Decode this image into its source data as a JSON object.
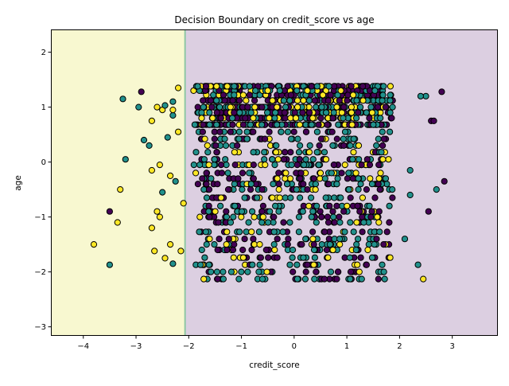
{
  "chart_data": {
    "type": "scatter",
    "title": "Decision Boundary on credit_score vs age",
    "xlabel": "credit_score",
    "ylabel": "age",
    "xlim": [
      -4.6,
      3.85
    ],
    "ylim": [
      -3.15,
      2.4
    ],
    "xticks": [
      -4,
      -3,
      -2,
      -1,
      0,
      1,
      2,
      3
    ],
    "yticks": [
      -3,
      -2,
      -1,
      0,
      1,
      2
    ],
    "grid": false,
    "legend": "none",
    "regions": [
      {
        "class": 2,
        "x_from": -4.6,
        "x_to": -2.07,
        "color": "#f8f8d0"
      },
      {
        "class": 0,
        "x_from": -2.07,
        "x_to": 3.85,
        "color": "#dccfe1"
      }
    ],
    "boundary_x": -2.07,
    "boundary_color": "#8fc7a4",
    "class_colors": {
      "0": "#440154",
      "1": "#21918c",
      "2": "#fde725"
    },
    "marker_edge": "#000000",
    "point_summary": {
      "x_range": [
        -3.8,
        2.85
      ],
      "y_levels": [
        -2.13,
        -2.0,
        -1.87,
        -1.74,
        -1.6,
        -1.5,
        -1.4,
        -1.27,
        -1.1,
        -1.0,
        -0.9,
        -0.8,
        -0.65,
        -0.5,
        -0.4,
        -0.3,
        -0.2,
        -0.05,
        0.05,
        0.18,
        0.3,
        0.42,
        0.55,
        0.68,
        0.8,
        0.9,
        1.0,
        1.12,
        1.22,
        1.3,
        1.38
      ],
      "dense_x_range": [
        -1.8,
        1.8
      ],
      "seed": 7
    },
    "points": [
      {
        "x": -3.8,
        "y": -1.5,
        "c": 2
      },
      {
        "x": -3.5,
        "y": -1.87,
        "c": 1
      },
      {
        "x": -3.5,
        "y": -0.9,
        "c": 0
      },
      {
        "x": -3.35,
        "y": -1.1,
        "c": 2
      },
      {
        "x": -3.3,
        "y": -0.5,
        "c": 2
      },
      {
        "x": -3.2,
        "y": 0.05,
        "c": 1
      },
      {
        "x": -3.25,
        "y": 1.15,
        "c": 1
      },
      {
        "x": -2.95,
        "y": 1.0,
        "c": 1
      },
      {
        "x": -2.9,
        "y": 1.28,
        "c": 0
      },
      {
        "x": -2.85,
        "y": 0.4,
        "c": 1
      },
      {
        "x": -2.75,
        "y": 0.3,
        "c": 1
      },
      {
        "x": -2.7,
        "y": 0.75,
        "c": 2
      },
      {
        "x": -2.7,
        "y": -0.15,
        "c": 2
      },
      {
        "x": -2.6,
        "y": 1.0,
        "c": 2
      },
      {
        "x": -2.55,
        "y": -0.05,
        "c": 2
      },
      {
        "x": -2.5,
        "y": -0.55,
        "c": 1
      },
      {
        "x": -2.45,
        "y": -1.75,
        "c": 2
      },
      {
        "x": -2.4,
        "y": 0.45,
        "c": 1
      },
      {
        "x": -2.35,
        "y": -0.25,
        "c": 2
      },
      {
        "x": -2.3,
        "y": 0.85,
        "c": 1
      },
      {
        "x": -2.3,
        "y": -1.85,
        "c": 1
      },
      {
        "x": -2.2,
        "y": 1.35,
        "c": 2
      },
      {
        "x": -2.2,
        "y": 0.55,
        "c": 2
      },
      {
        "x": -2.15,
        "y": -1.62,
        "c": 2
      },
      {
        "x": -2.6,
        "y": -0.9,
        "c": 2
      },
      {
        "x": -2.7,
        "y": -1.2,
        "c": 2
      },
      {
        "x": -2.65,
        "y": -1.62,
        "c": 2
      },
      {
        "x": -2.35,
        "y": -1.5,
        "c": 2
      },
      {
        "x": -2.3,
        "y": 1.1,
        "c": 1
      },
      {
        "x": -2.5,
        "y": 0.95,
        "c": 2
      },
      {
        "x": -2.45,
        "y": 1.03,
        "c": 1
      },
      {
        "x": -2.3,
        "y": 0.95,
        "c": 2
      },
      {
        "x": -2.25,
        "y": -0.35,
        "c": 1
      },
      {
        "x": -2.55,
        "y": -1.0,
        "c": 2
      },
      {
        "x": -2.1,
        "y": -0.75,
        "c": 2
      },
      {
        "x": 2.6,
        "y": 0.75,
        "c": 0
      },
      {
        "x": 2.7,
        "y": -0.5,
        "c": 1
      },
      {
        "x": 2.55,
        "y": -0.9,
        "c": 0
      },
      {
        "x": 2.45,
        "y": -2.13,
        "c": 2
      },
      {
        "x": 2.35,
        "y": -1.87,
        "c": 1
      },
      {
        "x": 2.8,
        "y": 1.28,
        "c": 0
      },
      {
        "x": 2.85,
        "y": -0.35,
        "c": 0
      },
      {
        "x": 2.5,
        "y": 1.2,
        "c": 1
      },
      {
        "x": 2.4,
        "y": 1.2,
        "c": 1
      },
      {
        "x": 2.65,
        "y": 0.75,
        "c": 0
      },
      {
        "x": 2.2,
        "y": -0.15,
        "c": 1
      },
      {
        "x": 2.1,
        "y": -1.4,
        "c": 1
      },
      {
        "x": 2.2,
        "y": -0.6,
        "c": 1
      }
    ]
  }
}
